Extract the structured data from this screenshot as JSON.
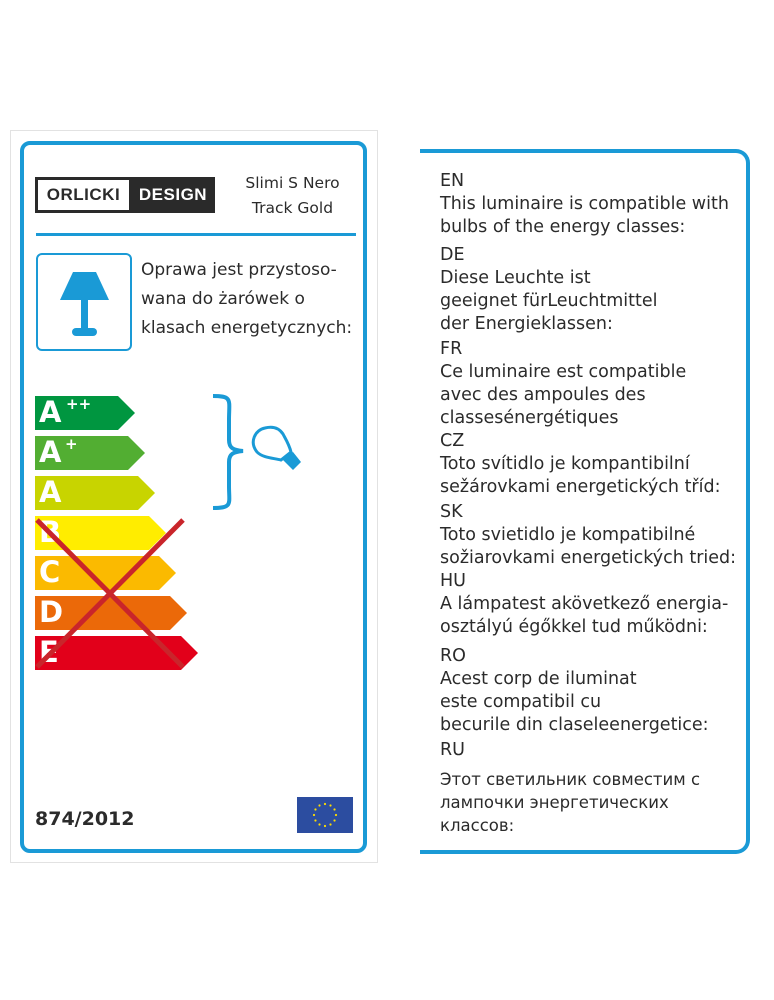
{
  "brand": {
    "left": "ORLICKI",
    "right": "DESIGN"
  },
  "product": {
    "line1": "Slimi S Nero",
    "line2": "Track Gold"
  },
  "polish_text": [
    "Oprawa jest przystoso-",
    "wana do żarówek o",
    "klasach energetycznych:"
  ],
  "energy_classes": [
    {
      "letter": "A",
      "sup": "++",
      "color": "#009640",
      "compatible": true
    },
    {
      "letter": "A",
      "sup": "+",
      "color": "#52ae32",
      "compatible": true
    },
    {
      "letter": "A",
      "sup": "",
      "color": "#c8d400",
      "compatible": true
    },
    {
      "letter": "B",
      "sup": "",
      "color": "#ffed00",
      "compatible": false
    },
    {
      "letter": "C",
      "sup": "",
      "color": "#fbba00",
      "compatible": false
    },
    {
      "letter": "D",
      "sup": "",
      "color": "#eb6909",
      "compatible": false
    },
    {
      "letter": "E",
      "sup": "",
      "color": "#e2001a",
      "compatible": false
    }
  ],
  "regulation": "874/2012",
  "icons": [
    "table-lamp-icon",
    "light-bulb-icon",
    "eu-flag-icon",
    "red-cross-mark"
  ],
  "colors": {
    "accent": "#1a9ad6",
    "cross": "#c9252b",
    "flag": "#2c4da0"
  },
  "languages": [
    {
      "code": "EN",
      "lines": [
        "This luminaire is compatible with",
        "bulbs of the energy classes:"
      ]
    },
    {
      "code": "DE",
      "lines": [
        "Diese Leuchte ist",
        "geeignet fürLeuchtmittel",
        "der Energieklassen:"
      ]
    },
    {
      "code": "FR",
      "lines": [
        "Ce luminaire est compatible",
        "avec des ampoules des",
        "classesénergétiques"
      ]
    },
    {
      "code": "CZ",
      "lines": [
        "Toto svítidlo je kompantibilní",
        "sežárovkami energetických tříd:"
      ]
    },
    {
      "code": "SK",
      "lines": [
        "Toto svietidlo je kompatibilné",
        "sožiarovkami energetických tried:"
      ]
    },
    {
      "code": "HU",
      "lines": [
        "A lámpatest akövetkező energia-",
        "osztályú égőkkel tud működni:"
      ]
    },
    {
      "code": "RO",
      "lines": [
        "Acest corp de iluminat",
        "este compatibil cu",
        "becurile din claseleenergetice:"
      ]
    },
    {
      "code": "RU",
      "lines": [
        "Этот светильник совместим с",
        "лампочки энергетических",
        "классов:"
      ]
    }
  ]
}
